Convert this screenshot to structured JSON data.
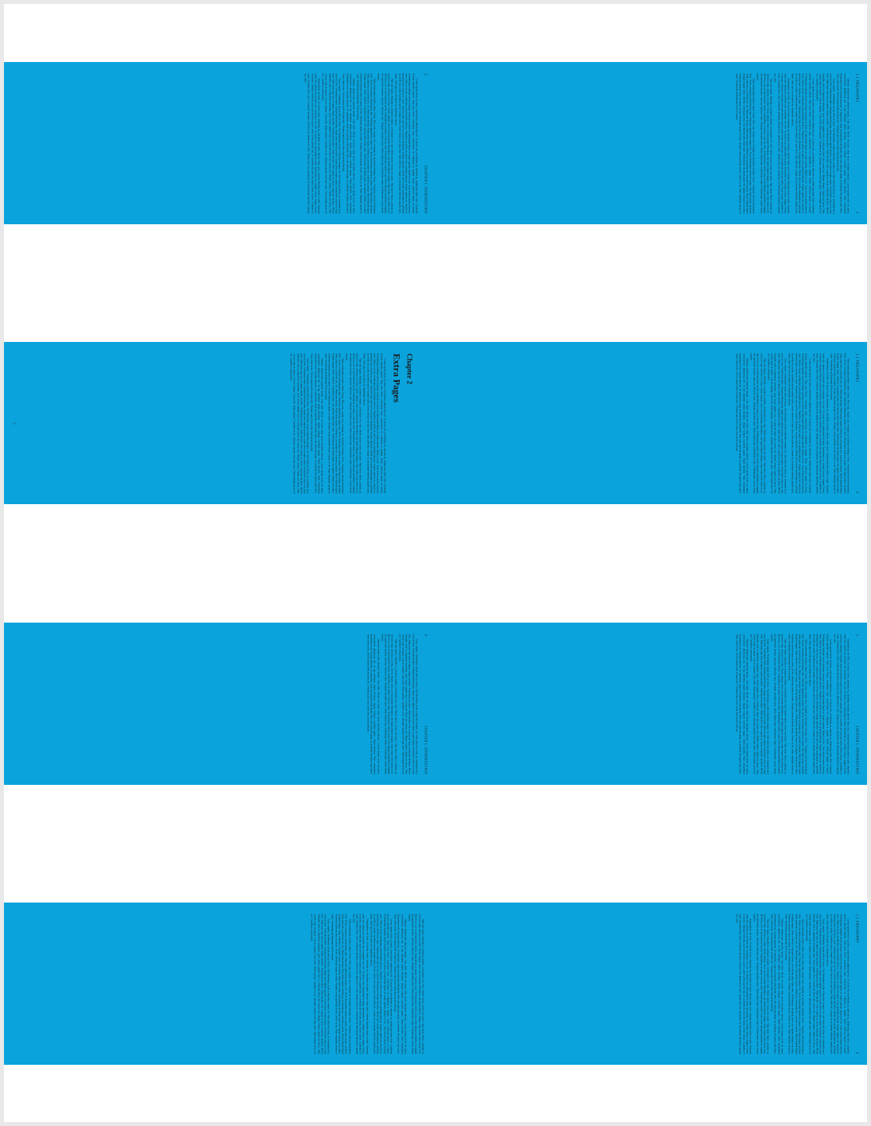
{
  "colors": {
    "background": "#e8e8e8",
    "sheet": "#ffffff",
    "page_fill": "#0aa3dc",
    "text": "#1a1a1a"
  },
  "pages": {
    "p2": {
      "header_left": "2",
      "header_right": "CHAPTER 1. INTRODUCTION"
    },
    "p3": {
      "header_left": "1.1. PHILOSOPHY",
      "header_right": "3"
    },
    "p4": {
      "header_left": "CHAPTER 1. INTRODUCTION",
      "header_right": "4",
      "blank_after_text": true
    },
    "p5": {
      "chapter_label": "Chapter 2",
      "chapter_title": "Extra Pages",
      "footer_number": "5"
    },
    "p6": {
      "header_left": "6",
      "header_right": "CHAPTER 2. EXTRA PAGES"
    },
    "p7": {
      "header_left": "2.1. PAGE",
      "header_right": "7"
    },
    "p8": {
      "header_left": "8",
      "header_right": "CHAPTER 2. EXTRA PAGES"
    },
    "p9": {
      "header_left": "2.2. DUMMY",
      "header_right": "9"
    }
  },
  "lorem": {
    "a": "Lorem ipsum dolor sit amet, consectetuer adipiscing elit. Ut purus elit, vestibulum ut, placerat ac, adipiscing vitae, felis. Curabitur dictum gravida mauris. Nam arcu libero, nonummy eget, consectetuer id, vulputate a, magna. Donec vehicula augue eu neque. Pellentesque habitant morbi tristique senectus et netus et malesuada fames ac turpis egestas. Mauris ut leo. Cras viverra metus rhoncus sem. Nulla et lectus vestibulum urna fringilla ultrices. Phasellus eu tellus sit amet tortor gravida placerat. Integer sapien est, iaculis in, pretium quis, viverra ac, nunc. Praesent eget sem vel leo ultrices bibendum. Aenean faucibus. Morbi dolor nulla, malesuada eu, pulvinar at, mollis ac, nulla. Curabitur auctor semper nulla. Donec varius orci eget risus. Duis nibh mi, congue eu, accumsan eleifend, sagittis quis, diam. Duis eget orci sit amet orci dignissim rutrum.",
    "b": "Nam dui ligula, fringilla a, euismod sodales, sollicitudin vel, wisi. Morbi auctor lorem non justo. Nam lacus libero, pretium at, lobortis vitae, ultricies et, tellus. Donec aliquet, tortor sed accumsan bibendum, erat ligula aliquet magna, vitae ornare odio metus a mi. Morbi ac orci et nisl hendrerit mollis. Suspendisse ut massa. Cras nec ante. Pellentesque a nulla. Cum sociis natoque penatibus et magnis dis parturient montes, nascetur ridiculus mus. Aliquam tincidunt urna. Nulla ullamcorper vestibulum turpis. Pellentesque cursus luctus mauris.",
    "c": "Nulla malesuada porttitor diam. Donec felis erat, congue non, volutpat at, tincidunt tristique, libero. Vivamus viverra fermentum felis. Donec nonummy pellentesque ante. Phasellus adipiscing semper elit. Proin fermentum massa ac quam. Sed diam turpis, molestie vitae, placerat a, molestie nec, leo. Maecenas lacinia. Nam ipsum ligula, eleifend at, accumsan nec, suscipit a, ipsum. Morbi blandit ligula feugiat magna. Nunc eleifend consequat lorem. Sed lacinia nulla vitae enim. Pellentesque tincidunt purus vel magna. Integer non enim. Praesent euismod nunc eu purus. Donec bibendum quam in tellus. Nullam cursus pulvinar lectus. Donec et mi. Nam vulputate metus eu enim. Vestibulum pellentesque felis eu massa.",
    "d": "Quisque ullamcorper placerat ipsum. Cras nibh. Morbi vel justo vitae lacus tincidunt ultrices. Lorem ipsum dolor sit amet, consectetuer adipiscing elit. In hac habitasse platea dictumst. Integer tempus convallis augue. Etiam facilisis. Nunc elementum fermentum wisi. Aenean placerat. Ut imperdiet, enim sed gravida sollicitudin, felis odio placerat quam, ac pulvinar elit purus eget enim. Nunc vitae tortor. Proin tempus nibh sit amet nisl. Vivamus quis tortor vitae risus porta vehicula.",
    "e": "Fusce mauris. Vestibulum luctus nibh at lectus. Sed bibendum, nulla a faucibus semper, leo velit ultricies tellus, ac venenatis arcu wisi vel nisl. Vestibulum diam. Aliquam pellentesque, augue quis sagittis posuere, turpis lacus congue quam, in hendrerit risus eros eget felis. Maecenas eget erat in sapien mattis porttitor. Vestibulum porttitor. Nulla facilisi. Sed a turpis eu lacus commodo facilisis. Morbi fringilla, wisi in dignissim interdum, justo lectus sagittis dui, et vehicula libero dui cursus dui. Mauris tempor ligula sed lacus. Duis cursus enim ut augue. Cras ac magna. Cras nulla. Nulla egestas. Curabitur a leo. Quisque egestas wisi eget nunc. Nam feugiat lacus vel est. Curabitur consectetuer.",
    "f": "Suspendisse vel felis. Ut lorem lorem, interdum eu, tincidunt sit amet, laoreet vitae, arcu. Aenean faucibus pede eu ante. Praesent enim elit, rutrum at, molestie non, nonummy vel, nisl. Ut lectus eros, malesuada sit amet, fermentum eu, sodales cursus, magna. Donec eu purus. Quisque vehicula, urna sed ultricies auctor, pede lorem egestas dui, et convallis elit erat sed nulla. Donec luctus. Curabitur et nunc. Aliquam dolor odio, commodo pretium, ultricies non, pharetra in, velit. Integer arcu est, nonummy in, fermentum faucibus, egestas vel, odio."
  }
}
